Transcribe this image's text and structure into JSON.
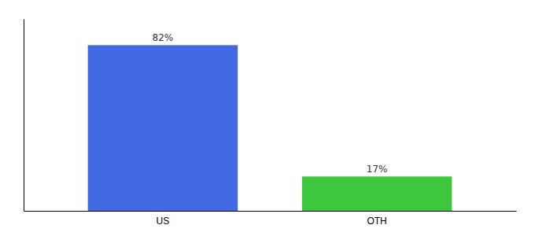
{
  "chart_data": {
    "type": "bar",
    "categories": [
      "US",
      "OTH"
    ],
    "values": [
      82,
      17
    ],
    "value_labels": [
      "82%",
      "17%"
    ],
    "colors": [
      "#4169e1",
      "#3dc73d"
    ],
    "ylim": [
      0,
      95
    ],
    "tick_labels": "x",
    "data_labels": true,
    "grid": false
  }
}
